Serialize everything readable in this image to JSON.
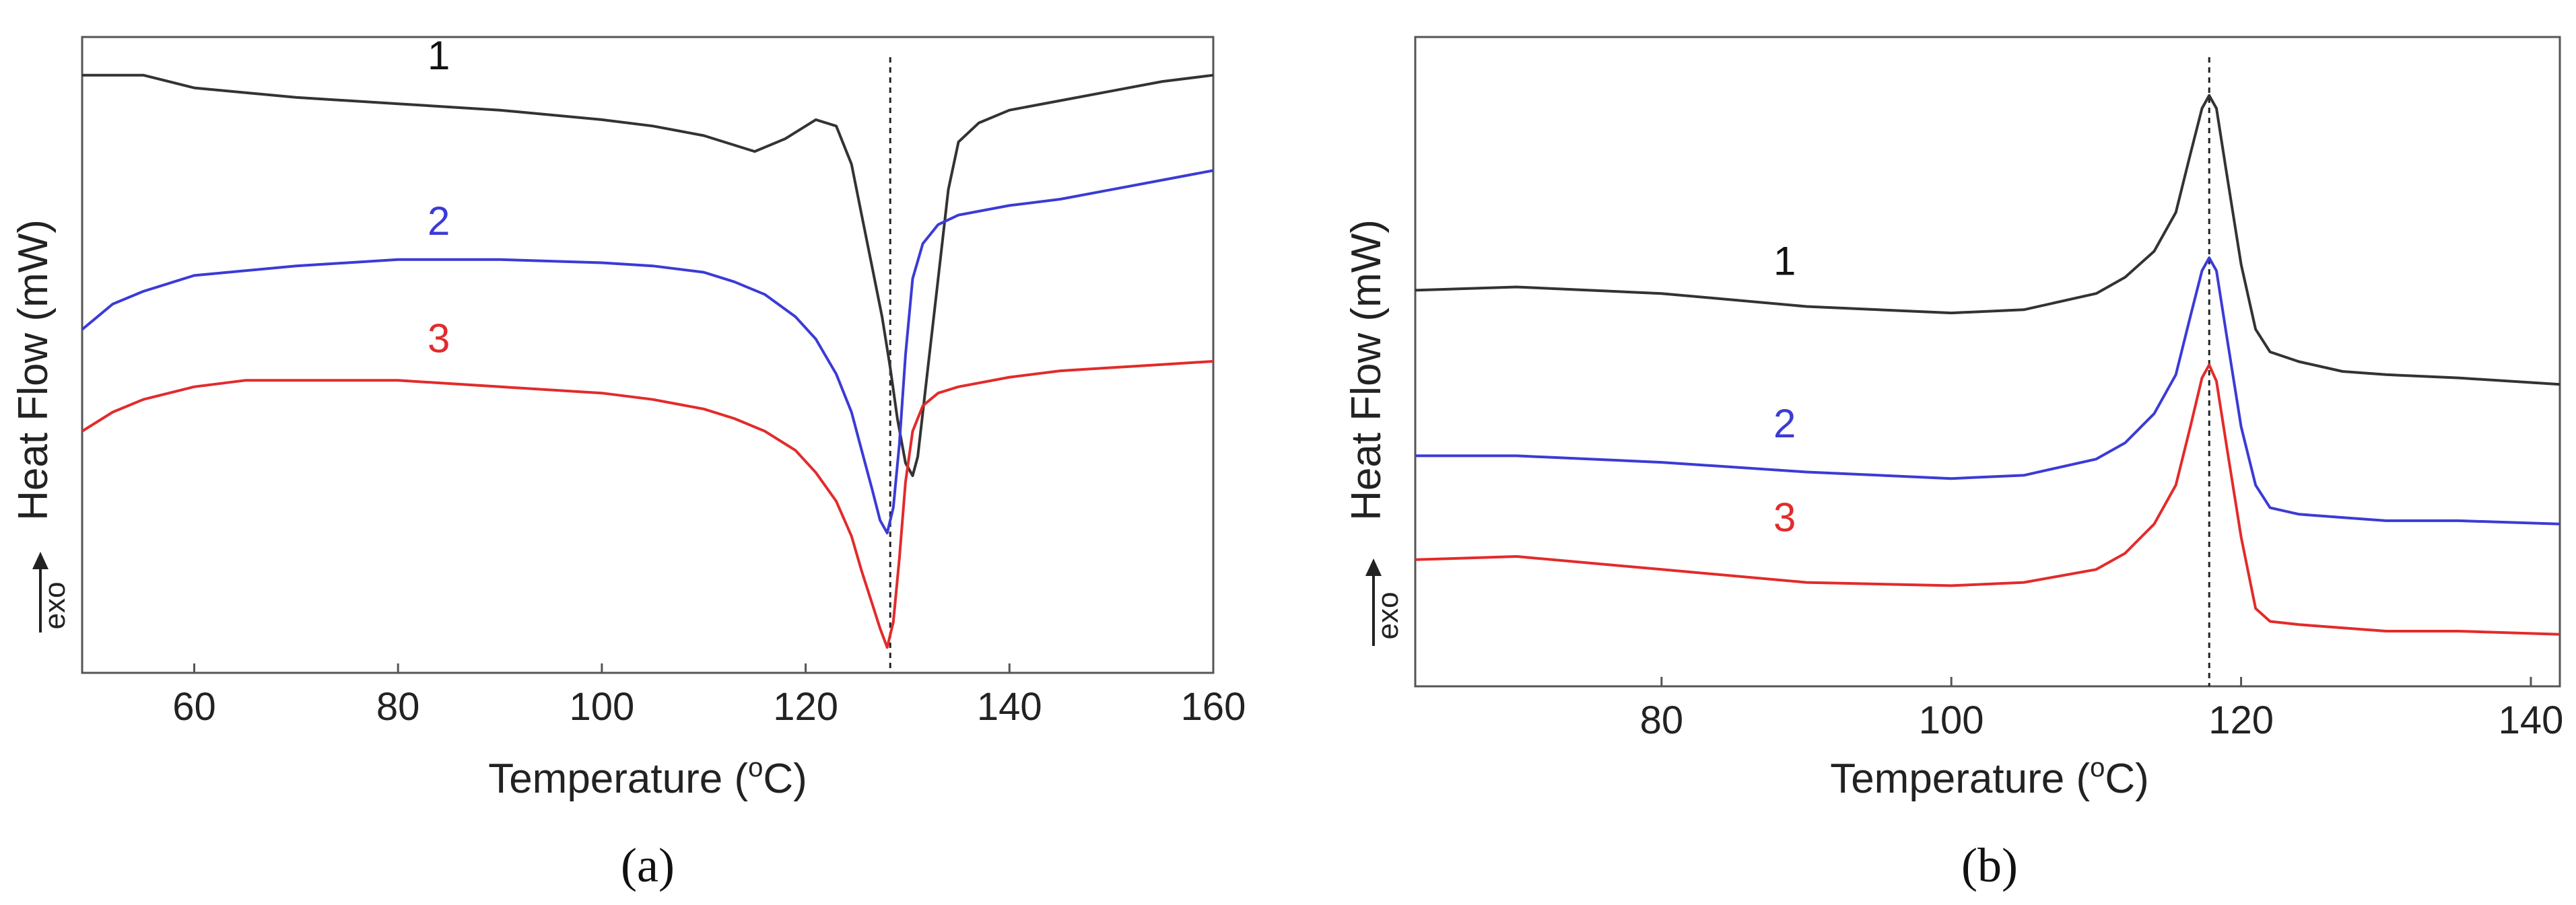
{
  "chart_data": [
    {
      "type": "line",
      "panel_label": "(a)",
      "xlabel": "Temperature (°C)",
      "xlabel_main": "Temperature (",
      "xlabel_sup": "o",
      "xlabel_tail": "C)",
      "ylabel": "Heat Flow (mW)",
      "exo_label": "exo",
      "xlim": [
        49,
        160
      ],
      "ylim": [
        0,
        100
      ],
      "x_ticks": [
        60,
        80,
        100,
        120,
        140,
        160
      ],
      "reference_line_x": 128.3,
      "series": [
        {
          "name": "1",
          "color": "#333333",
          "x": [
            49,
            52,
            55,
            60,
            70,
            80,
            90,
            100,
            105,
            110,
            115,
            118,
            121,
            123,
            124.5,
            125.5,
            126.5,
            127.5,
            128.3,
            129,
            129.8,
            130.5,
            131,
            132,
            133,
            134,
            135,
            137,
            140,
            145,
            150,
            155,
            160
          ],
          "y": [
            94,
            94,
            94,
            92,
            90.5,
            89.5,
            88.5,
            87,
            86,
            84.5,
            82,
            84,
            87,
            86,
            80,
            72,
            64,
            56,
            48,
            40,
            33,
            31,
            34,
            48,
            62,
            76,
            83.5,
            86.5,
            88.5,
            90,
            91.5,
            93,
            94
          ]
        },
        {
          "name": "2",
          "color": "#3b3bd6",
          "x": [
            49,
            52,
            55,
            60,
            70,
            80,
            90,
            100,
            105,
            110,
            113,
            116,
            119,
            121,
            123,
            124.5,
            125.5,
            126.5,
            127.3,
            128,
            128.6,
            129.2,
            129.8,
            130.5,
            131.5,
            133,
            135,
            140,
            145,
            150,
            155,
            160
          ],
          "y": [
            54,
            58,
            60,
            62.5,
            64,
            65,
            65,
            64.5,
            64,
            63,
            61.5,
            59.5,
            56,
            52.5,
            47,
            41,
            35,
            29,
            24,
            22,
            26,
            36,
            50,
            62,
            67.5,
            70.5,
            72,
            73.5,
            74.5,
            76,
            77.5,
            79
          ]
        },
        {
          "name": "3",
          "color": "#e22b2b",
          "x": [
            49,
            52,
            55,
            60,
            65,
            70,
            80,
            90,
            100,
            105,
            110,
            113,
            116,
            119,
            121,
            123,
            124.5,
            125.5,
            126.5,
            127.3,
            128,
            128.6,
            129.2,
            129.8,
            130.5,
            131.5,
            133,
            135,
            140,
            145,
            150,
            155,
            160
          ],
          "y": [
            38,
            41,
            43,
            45,
            46,
            46,
            46,
            45,
            44,
            43,
            41.5,
            40,
            38,
            35,
            31.5,
            27,
            21.5,
            16,
            11,
            7,
            4,
            8,
            18,
            30,
            38,
            42,
            44,
            45,
            46.5,
            47.5,
            48,
            48.5,
            49
          ]
        }
      ],
      "curve_labels": [
        {
          "text": "1",
          "x": 84,
          "y": 93,
          "color": "#111111"
        },
        {
          "text": "2",
          "x": 84,
          "y": 67,
          "color": "#3b3bd6"
        },
        {
          "text": "3",
          "x": 84,
          "y": 48.5,
          "color": "#e22b2b"
        }
      ]
    },
    {
      "type": "line",
      "panel_label": "(b)",
      "xlabel": "Temperature (°C)",
      "xlabel_main": "Temperature (",
      "xlabel_sup": "o",
      "xlabel_tail": "C)",
      "ylabel": "Heat Flow (mW)",
      "exo_label": "exo",
      "xlim": [
        63,
        142
      ],
      "ylim": [
        0,
        100
      ],
      "x_ticks": [
        80,
        100,
        120,
        140
      ],
      "reference_line_x": 117.8,
      "series": [
        {
          "name": "1",
          "color": "#333333",
          "x": [
            63,
            70,
            80,
            90,
            100,
            105,
            110,
            112,
            114,
            115.5,
            116.5,
            117.3,
            117.8,
            118.3,
            119,
            120,
            121,
            122,
            124,
            127,
            130,
            135,
            142
          ],
          "y": [
            61,
            61.5,
            60.5,
            58.5,
            57.5,
            58,
            60.5,
            63,
            67,
            73,
            82,
            89,
            91,
            89,
            79,
            65,
            55,
            51.5,
            50,
            48.5,
            48,
            47.5,
            46.5
          ]
        },
        {
          "name": "2",
          "color": "#3b3bd6",
          "x": [
            63,
            70,
            80,
            90,
            100,
            105,
            110,
            112,
            114,
            115.5,
            116.5,
            117.3,
            117.8,
            118.3,
            119,
            120,
            121,
            122,
            124,
            127,
            130,
            135,
            142
          ],
          "y": [
            35.5,
            35.5,
            34.5,
            33,
            32,
            32.5,
            35,
            37.5,
            42,
            48,
            57,
            64,
            66,
            64,
            54,
            40,
            31,
            27.5,
            26.5,
            26,
            25.5,
            25.5,
            25
          ]
        },
        {
          "name": "3",
          "color": "#e22b2b",
          "x": [
            63,
            70,
            80,
            90,
            100,
            105,
            110,
            112,
            114,
            115.5,
            116.5,
            117.3,
            117.8,
            118.3,
            119,
            120,
            121,
            122,
            124,
            127,
            130,
            135,
            142
          ],
          "y": [
            19.5,
            20,
            18,
            16,
            15.5,
            16,
            18,
            20.5,
            25,
            31,
            40,
            47.5,
            49.5,
            47,
            37,
            23,
            12,
            10,
            9.5,
            9,
            8.5,
            8.5,
            8
          ]
        }
      ],
      "curve_labels": [
        {
          "text": "1",
          "x": 88.5,
          "y": 61.5,
          "color": "#111111"
        },
        {
          "text": "2",
          "x": 88.5,
          "y": 36.5,
          "color": "#3b3bd6"
        },
        {
          "text": "3",
          "x": 88.5,
          "y": 22,
          "color": "#e22b2b"
        }
      ]
    }
  ]
}
